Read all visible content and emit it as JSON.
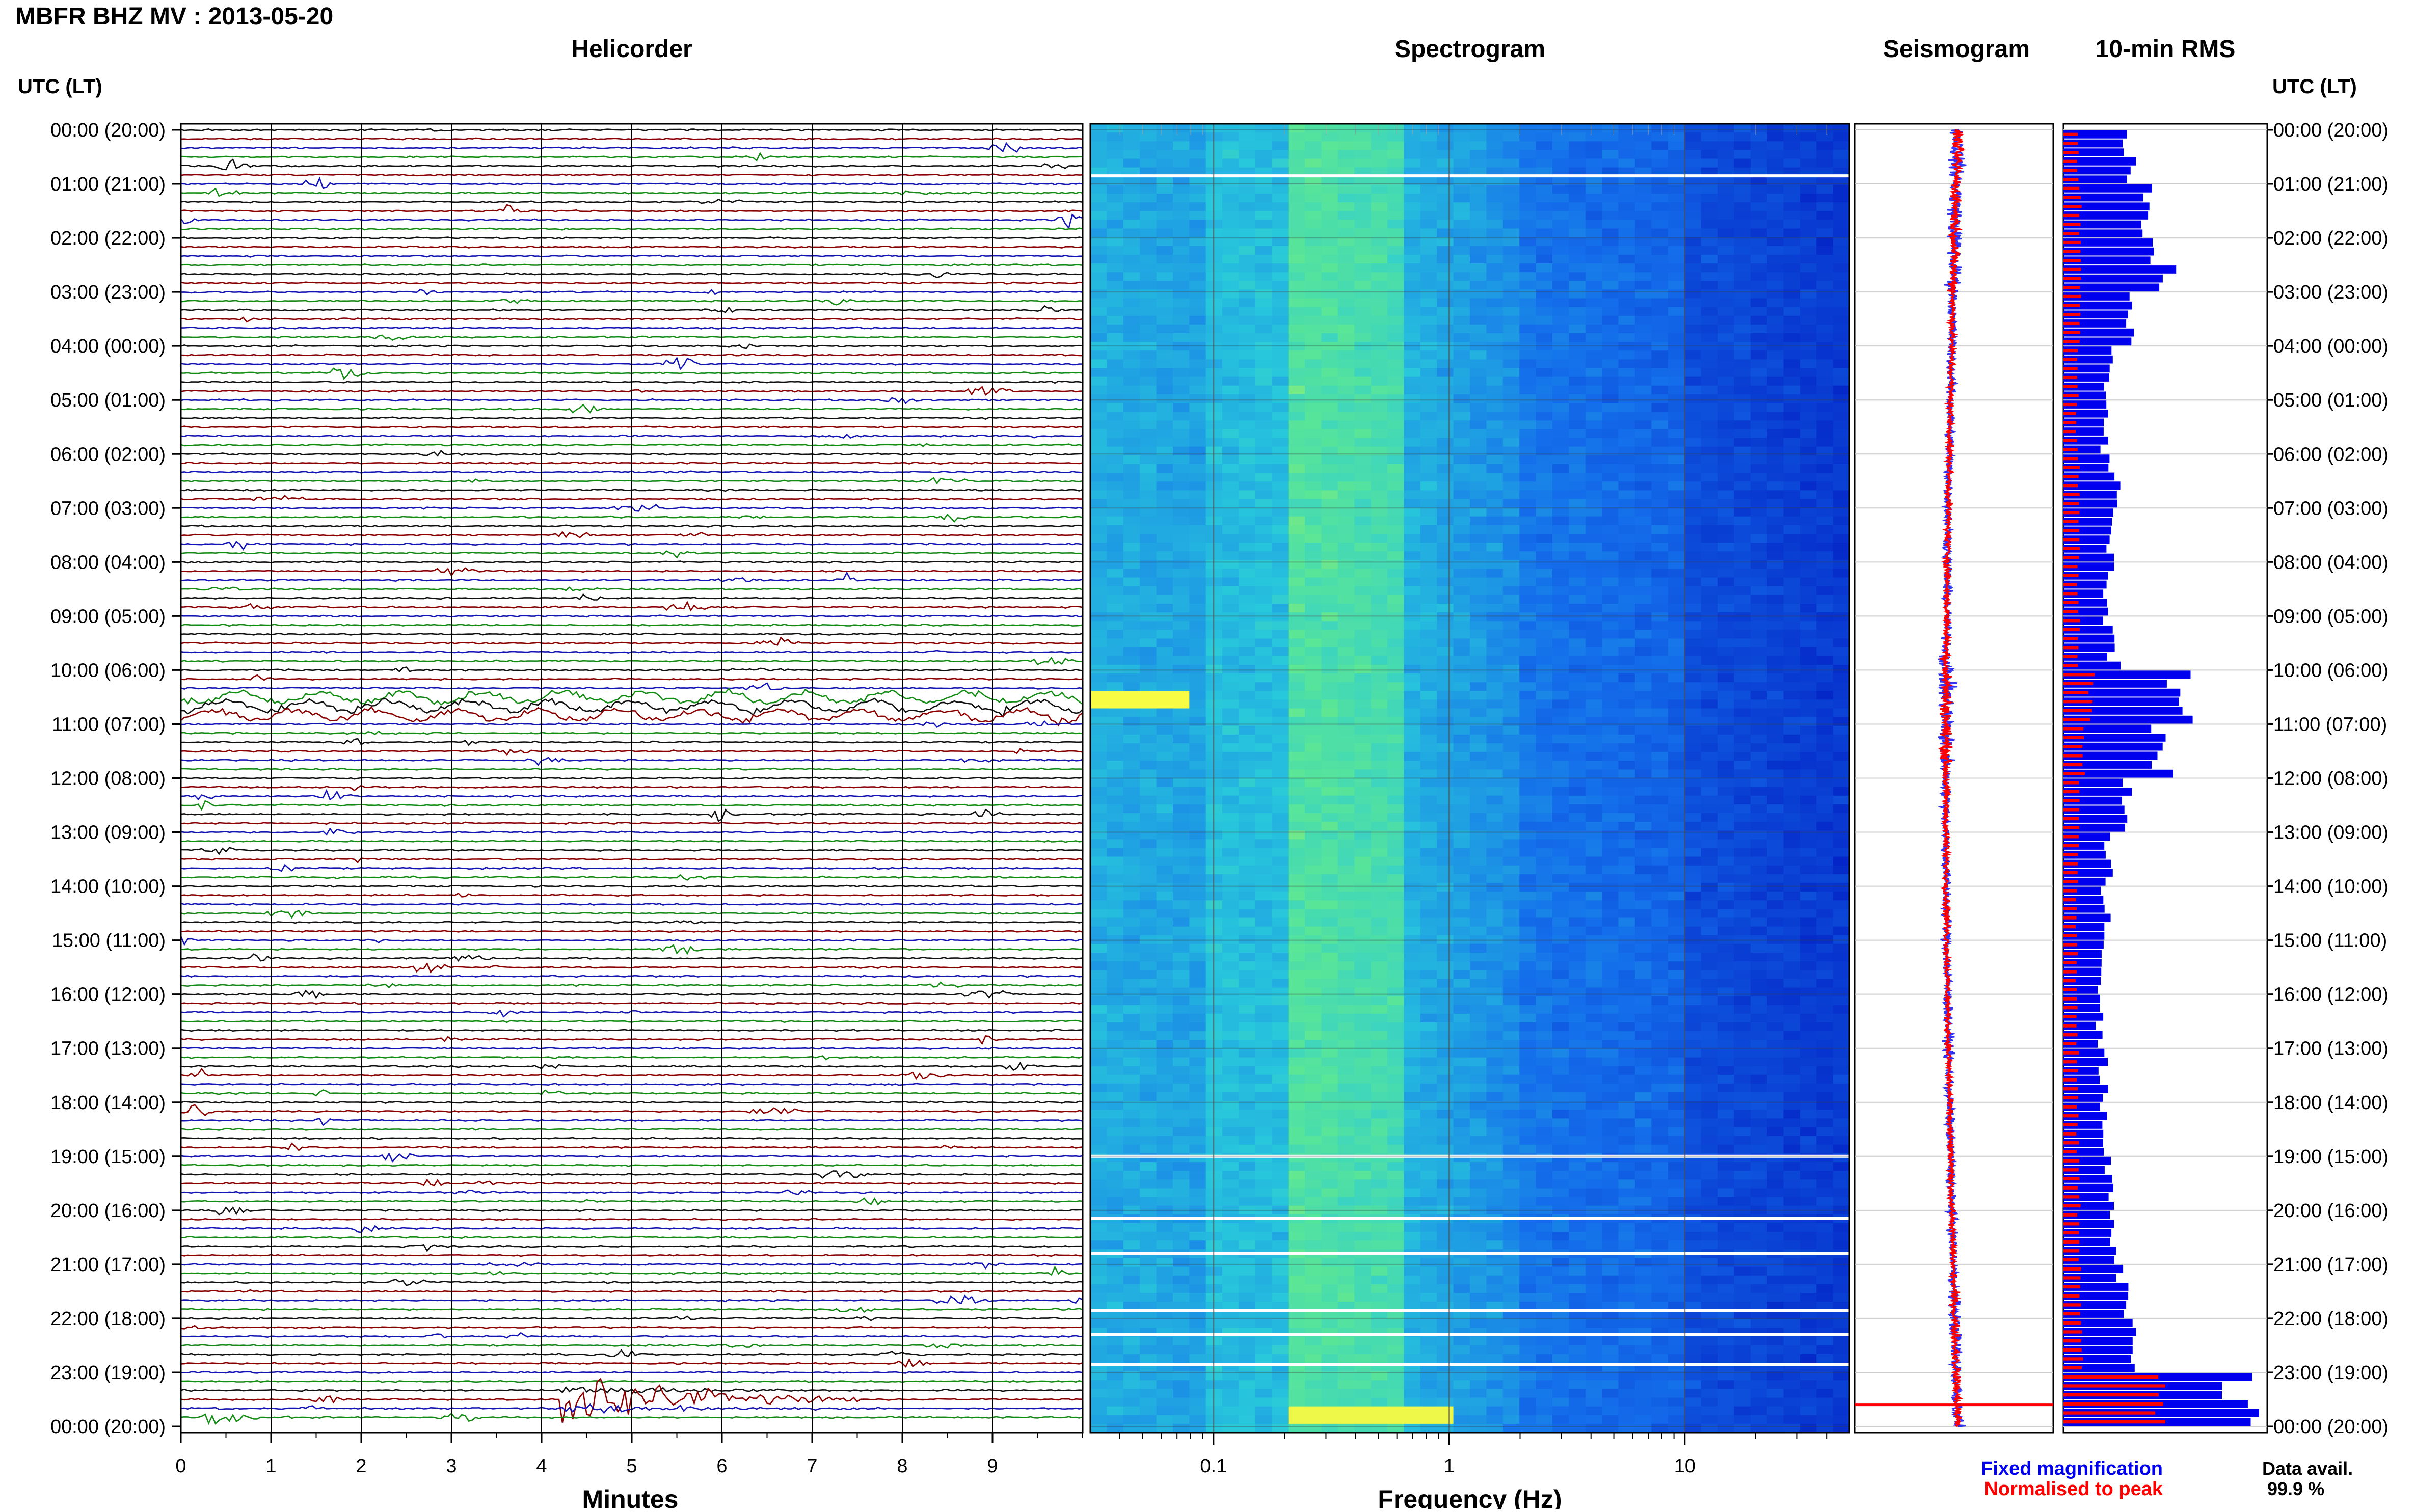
{
  "page": {
    "title": "MBFR BHZ MV : 2013-05-20"
  },
  "colors": {
    "trace_black": "#111111",
    "trace_red": "#8b0000",
    "trace_blue": "#1515b4",
    "trace_green": "#158c15",
    "rms_fixed": "#0000ee",
    "rms_normalised": "#ff0000",
    "spec_low": "#0015c8",
    "spec_high": "#ffff40"
  },
  "panels": {
    "helicorder": {
      "title": "Helicorder",
      "xlabel": "Minutes"
    },
    "spectrogram": {
      "title": "Spectrogram",
      "xlabel": "Frequency (Hz)"
    },
    "seismogram": {
      "title": "Seismogram"
    },
    "rms": {
      "title": "10-min RMS"
    }
  },
  "time_axis": {
    "header": "UTC (LT)",
    "labels": [
      "00:00 (20:00)",
      "01:00 (21:00)",
      "02:00 (22:00)",
      "03:00 (23:00)",
      "04:00 (00:00)",
      "05:00 (01:00)",
      "06:00 (02:00)",
      "07:00 (03:00)",
      "08:00 (04:00)",
      "09:00 (05:00)",
      "10:00 (06:00)",
      "11:00 (07:00)",
      "12:00 (08:00)",
      "13:00 (09:00)",
      "14:00 (10:00)",
      "15:00 (11:00)",
      "16:00 (12:00)",
      "17:00 (13:00)",
      "18:00 (14:00)",
      "19:00 (15:00)",
      "20:00 (16:00)",
      "21:00 (17:00)",
      "22:00 (18:00)",
      "23:00 (19:00)",
      "00:00 (20:00)"
    ]
  },
  "legend": {
    "fixed": "Fixed magnification",
    "normalised": "Normalised to peak"
  },
  "data_avail": {
    "label": "Data avail.",
    "value": "99.9 %"
  },
  "chart_data": [
    {
      "type": "line",
      "panel": "Helicorder",
      "xlabel": "Minutes",
      "xlim": [
        0,
        10
      ],
      "x_ticks": [
        "0",
        "1",
        "2",
        "3",
        "4",
        "5",
        "6",
        "7",
        "8",
        "9"
      ],
      "rows": 144,
      "row_minutes": 10,
      "trace_color_cycle": [
        "black",
        "red",
        "blue",
        "green"
      ],
      "events": [
        {
          "hour": 10.7,
          "minute_start": 0,
          "minute_end": 10,
          "amplitude": 0.45
        },
        {
          "hour": 23.5,
          "minute_start": 4.2,
          "minute_end": 7.5,
          "amplitude": 1.0
        },
        {
          "hour": 23.85,
          "minute_start": 0.2,
          "minute_end": 1.2,
          "amplitude": 0.3
        }
      ]
    },
    {
      "type": "heatmap",
      "panel": "Spectrogram",
      "xlabel": "Frequency (Hz)",
      "x_scale": "log",
      "xlim": [
        0.03,
        50
      ],
      "x_tick_labels": [
        "0.1",
        "1",
        "10"
      ],
      "gaps_hours": [
        0.85,
        19.0,
        20.15,
        20.8,
        21.85,
        22.3,
        22.85
      ],
      "hot_spots": [
        {
          "hour": 10.5,
          "freq_low": 0.03,
          "freq_high": 0.08
        }
      ]
    },
    {
      "type": "line",
      "panel": "Seismogram",
      "series": [
        {
          "name": "Fixed magnification",
          "color": "#0000ee"
        },
        {
          "name": "Normalised to peak",
          "color": "#ff0000"
        }
      ],
      "peak_hour": 23.6
    },
    {
      "type": "bar",
      "panel": "10-min RMS",
      "orientation": "horizontal",
      "hours": [
        0.5,
        1.5,
        2.5,
        3.5,
        4.5,
        5.5,
        6.5,
        7.5,
        8.5,
        9.5,
        10.5,
        11.5,
        12.5,
        13.5,
        14.5,
        15.5,
        16.5,
        17.5,
        18.5,
        19.5,
        20.5,
        21.5,
        22.5,
        23.5
      ],
      "fixed_magnification": [
        0.32,
        0.42,
        0.47,
        0.32,
        0.22,
        0.2,
        0.25,
        0.24,
        0.23,
        0.24,
        0.6,
        0.48,
        0.3,
        0.22,
        0.2,
        0.18,
        0.18,
        0.2,
        0.2,
        0.22,
        0.24,
        0.3,
        0.36,
        0.9
      ],
      "normalised_to_peak": [
        0.14,
        0.16,
        0.17,
        0.16,
        0.14,
        0.13,
        0.15,
        0.15,
        0.14,
        0.15,
        0.28,
        0.2,
        0.15,
        0.14,
        0.13,
        0.13,
        0.13,
        0.14,
        0.14,
        0.15,
        0.15,
        0.17,
        0.18,
        0.95
      ]
    }
  ]
}
